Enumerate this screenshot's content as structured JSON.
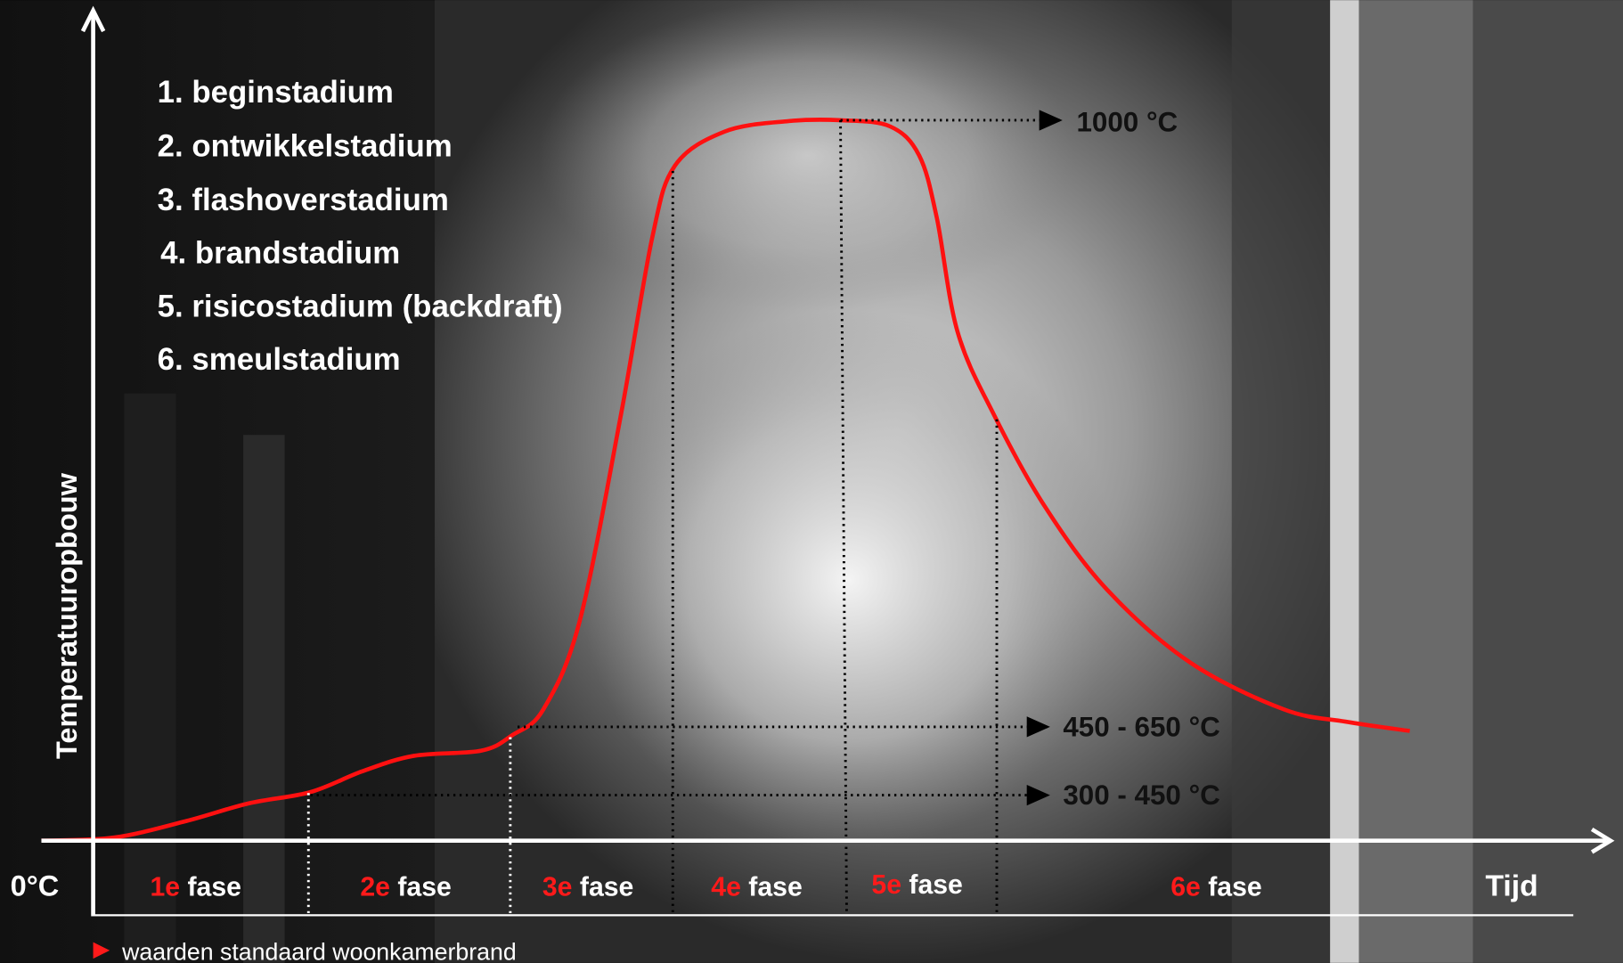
{
  "stages": [
    "1. beginstadium",
    "2. ontwikkelstadium",
    "3. flashoverstadium",
    "4. brandstadium",
    "5. risicostadium (backdraft)",
    "6. smeulstadium"
  ],
  "temperatures": [
    "1000 °C",
    "450 - 650 °C",
    "300 - 450 °C"
  ],
  "phases": [
    {
      "number": "1e",
      "label": "fase"
    },
    {
      "number": "2e",
      "label": "fase"
    },
    {
      "number": "3e",
      "label": "fase"
    },
    {
      "number": "4e",
      "label": "fase"
    },
    {
      "number": "5e",
      "label": "fase"
    },
    {
      "number": "6e",
      "label": "fase"
    }
  ],
  "axes": {
    "y_label": "Temperatuuropbouw",
    "x_label": "Tijd",
    "origin": "0°C"
  },
  "footnote": "waarden standaard woonkamerbrand"
}
